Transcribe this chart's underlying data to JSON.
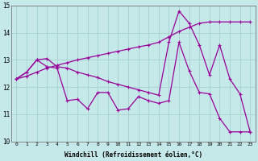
{
  "xlabel": "Windchill (Refroidissement éolien,°C)",
  "background_color": "#c5e8e8",
  "line_color": "#990099",
  "grid_color": "#aad4d4",
  "xlim": [
    -0.5,
    23.5
  ],
  "ylim": [
    10,
    15
  ],
  "yticks": [
    10,
    11,
    12,
    13,
    14,
    15
  ],
  "xticks": [
    0,
    1,
    2,
    3,
    4,
    5,
    6,
    7,
    8,
    9,
    10,
    11,
    12,
    13,
    14,
    15,
    16,
    17,
    18,
    19,
    20,
    21,
    22,
    23
  ],
  "x": [
    0,
    1,
    2,
    3,
    4,
    5,
    6,
    7,
    8,
    9,
    10,
    11,
    12,
    13,
    14,
    15,
    16,
    17,
    18,
    19,
    20,
    21,
    22,
    23
  ],
  "lineA": [
    12.3,
    12.4,
    12.55,
    12.7,
    12.8,
    12.9,
    13.0,
    13.08,
    13.16,
    13.24,
    13.32,
    13.4,
    13.48,
    13.55,
    13.65,
    13.85,
    14.05,
    14.2,
    14.35,
    14.4,
    14.4,
    14.4,
    14.4,
    14.4
  ],
  "lineB": [
    12.3,
    12.55,
    13.0,
    13.05,
    12.75,
    12.7,
    12.55,
    12.45,
    12.35,
    12.2,
    12.1,
    12.0,
    11.9,
    11.8,
    11.7,
    13.65,
    14.8,
    14.35,
    13.55,
    12.45,
    13.55,
    12.3,
    11.75,
    10.35
  ],
  "lineC": [
    12.3,
    12.55,
    13.0,
    12.75,
    12.7,
    11.5,
    11.55,
    11.2,
    11.8,
    11.8,
    11.15,
    11.2,
    11.65,
    11.5,
    11.4,
    11.5,
    13.65,
    12.6,
    11.8,
    11.75,
    10.85,
    10.35,
    10.35,
    10.35
  ]
}
